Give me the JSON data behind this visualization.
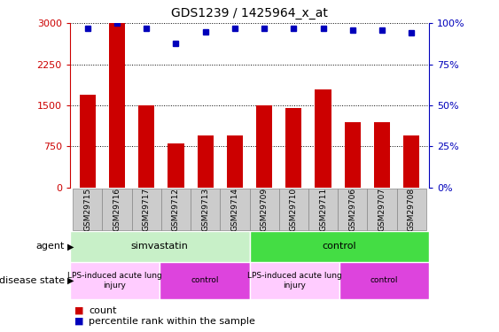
{
  "title": "GDS1239 / 1425964_x_at",
  "samples": [
    "GSM29715",
    "GSM29716",
    "GSM29717",
    "GSM29712",
    "GSM29713",
    "GSM29714",
    "GSM29709",
    "GSM29710",
    "GSM29711",
    "GSM29706",
    "GSM29707",
    "GSM29708"
  ],
  "counts": [
    1700,
    3000,
    1500,
    800,
    950,
    950,
    1500,
    1450,
    1800,
    1200,
    1200,
    950
  ],
  "percentiles": [
    97,
    100,
    97,
    88,
    95,
    97,
    97,
    97,
    97,
    96,
    96,
    94
  ],
  "bar_color": "#cc0000",
  "dot_color": "#0000bb",
  "ylim_left": [
    0,
    3000
  ],
  "ylim_right": [
    0,
    100
  ],
  "yticks_left": [
    0,
    750,
    1500,
    2250,
    3000
  ],
  "yticks_right": [
    0,
    25,
    50,
    75,
    100
  ],
  "agent_groups": [
    {
      "label": "simvastatin",
      "start": 0,
      "end": 6,
      "color": "#c8f0c8"
    },
    {
      "label": "control",
      "start": 6,
      "end": 12,
      "color": "#44dd44"
    }
  ],
  "disease_groups": [
    {
      "label": "LPS-induced acute lung\ninjury",
      "start": 0,
      "end": 3,
      "color": "#ffccff"
    },
    {
      "label": "control",
      "start": 3,
      "end": 6,
      "color": "#dd44dd"
    },
    {
      "label": "LPS-induced acute lung\ninjury",
      "start": 6,
      "end": 9,
      "color": "#ffccff"
    },
    {
      "label": "control",
      "start": 9,
      "end": 12,
      "color": "#dd44dd"
    }
  ],
  "agent_label": "agent",
  "disease_label": "disease state",
  "legend_count_label": "count",
  "legend_pct_label": "percentile rank within the sample",
  "grid_color": "#000000",
  "sample_box_color": "#cccccc",
  "sample_box_edge": "#888888"
}
